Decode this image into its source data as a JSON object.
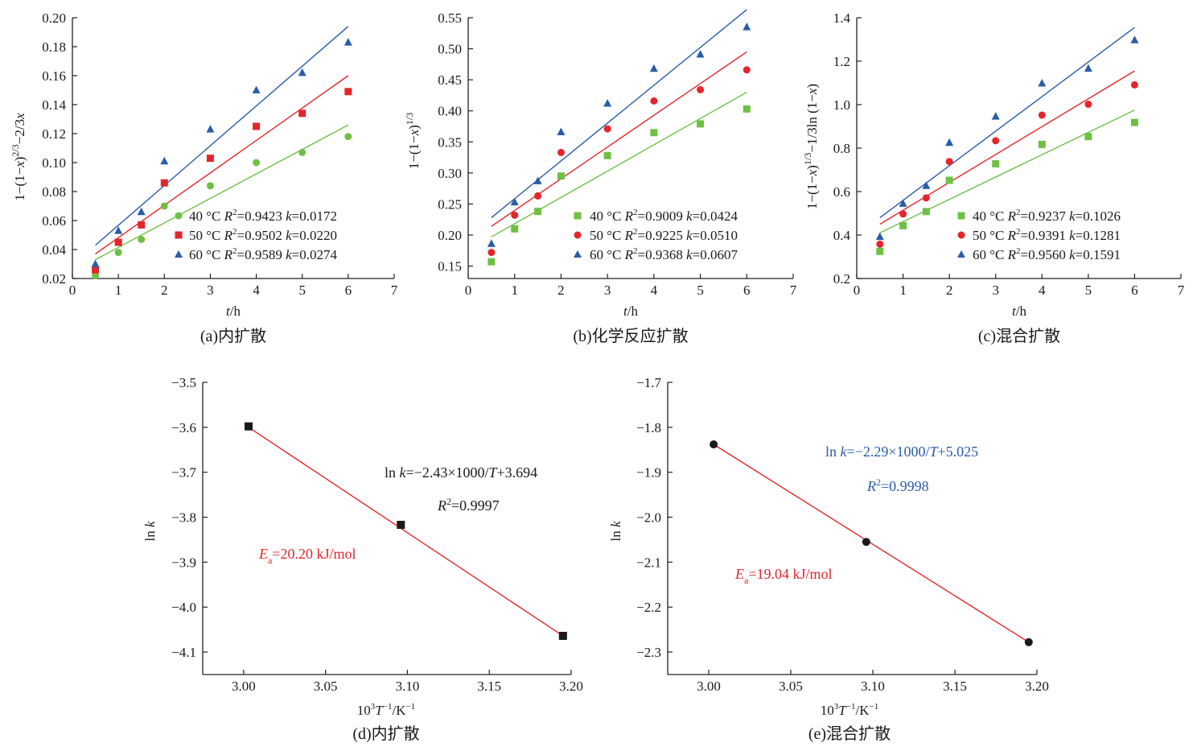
{
  "chart_data": [
    {
      "id": "a",
      "type": "scatter",
      "caption": "(a)内扩散",
      "xlabel": "t/h",
      "ylabel": "1−(1−x)^{2/3}−2/3x",
      "xlim": [
        0,
        7
      ],
      "ylim": [
        0.02,
        0.2
      ],
      "xticks": [
        "0",
        "1",
        "2",
        "3",
        "4",
        "5",
        "6",
        "7"
      ],
      "yticks": [
        "0.02",
        "0.04",
        "0.06",
        "0.08",
        "0.10",
        "0.12",
        "0.14",
        "0.16",
        "0.18",
        "0.20"
      ],
      "series": [
        {
          "name": "40 °C R2=0.9423 k=0.0172",
          "temp": "40 °C",
          "r2": "0.9423",
          "k": "0.0172",
          "marker": "circle",
          "color": "#6ec045",
          "x": [
            0.5,
            1,
            1.5,
            2,
            3,
            4,
            5,
            6
          ],
          "y": [
            0.022,
            0.038,
            0.047,
            0.07,
            0.084,
            0.1,
            0.107,
            0.118
          ],
          "fit": [
            [
              0.5,
              0.033
            ],
            [
              6,
              0.126
            ]
          ]
        },
        {
          "name": "50 °C R2=0.9502 k=0.0220",
          "temp": "50 °C",
          "r2": "0.9502",
          "k": "0.0220",
          "marker": "square",
          "color": "#e3262b",
          "x": [
            0.5,
            1,
            1.5,
            2,
            3,
            4,
            5,
            6
          ],
          "y": [
            0.026,
            0.045,
            0.057,
            0.086,
            0.103,
            0.125,
            0.134,
            0.149
          ],
          "fit": [
            [
              0.5,
              0.037
            ],
            [
              6,
              0.16
            ]
          ]
        },
        {
          "name": "60 °C R2=0.9589 k=0.0274",
          "temp": "60 °C",
          "r2": "0.9589",
          "k": "0.0274",
          "marker": "triangle",
          "color": "#2a5ca8",
          "x": [
            0.5,
            1,
            1.5,
            2,
            3,
            4,
            5,
            6
          ],
          "y": [
            0.03,
            0.053,
            0.066,
            0.101,
            0.123,
            0.15,
            0.162,
            0.183
          ],
          "fit": [
            [
              0.5,
              0.043
            ],
            [
              6,
              0.194
            ]
          ]
        }
      ]
    },
    {
      "id": "b",
      "type": "scatter",
      "caption": "(b)化学反应扩散",
      "xlabel": "t/h",
      "ylabel": "1−(1−x)^{1/3}",
      "xlim": [
        0,
        7
      ],
      "ylim": [
        0.13,
        0.55
      ],
      "xticks": [
        "0",
        "1",
        "2",
        "3",
        "4",
        "5",
        "6",
        "7"
      ],
      "yticks": [
        "0.15",
        "0.20",
        "0.25",
        "0.30",
        "0.35",
        "0.40",
        "0.45",
        "0.50",
        "0.55"
      ],
      "series": [
        {
          "name": "40 °C R2=0.9009 k=0.0424",
          "temp": "40 °C",
          "r2": "0.9009",
          "k": "0.0424",
          "marker": "square",
          "color": "#6ec045",
          "x": [
            0.5,
            1,
            1.5,
            2,
            3,
            4,
            5,
            6
          ],
          "y": [
            0.157,
            0.21,
            0.238,
            0.295,
            0.328,
            0.365,
            0.379,
            0.403
          ],
          "fit": [
            [
              0.5,
              0.197
            ],
            [
              6,
              0.43
            ]
          ]
        },
        {
          "name": "50 °C R2=0.9225 k=0.0510",
          "temp": "50 °C",
          "r2": "0.9225",
          "k": "0.0510",
          "marker": "circle",
          "color": "#e3262b",
          "x": [
            0.5,
            1,
            1.5,
            2,
            3,
            4,
            5,
            6
          ],
          "y": [
            0.172,
            0.232,
            0.263,
            0.333,
            0.371,
            0.416,
            0.434,
            0.466
          ],
          "fit": [
            [
              0.5,
              0.214
            ],
            [
              6,
              0.495
            ]
          ]
        },
        {
          "name": "60 °C R2=0.9368 k=0.0607",
          "temp": "60 °C",
          "r2": "0.9368",
          "k": "0.0607",
          "marker": "triangle",
          "color": "#2a5ca8",
          "x": [
            0.5,
            1,
            1.5,
            2,
            3,
            4,
            5,
            6
          ],
          "y": [
            0.186,
            0.253,
            0.287,
            0.366,
            0.412,
            0.468,
            0.491,
            0.535
          ],
          "fit": [
            [
              0.5,
              0.228
            ],
            [
              6,
              0.563
            ]
          ]
        }
      ]
    },
    {
      "id": "c",
      "type": "scatter",
      "caption": "(c)混合扩散",
      "xlabel": "t/h",
      "ylabel": "1−(1−x)^{1/3}−1/3ln(1−x)",
      "xlim": [
        0,
        7
      ],
      "ylim": [
        0.2,
        1.4
      ],
      "xticks": [
        "0",
        "1",
        "2",
        "3",
        "4",
        "5",
        "6",
        "7"
      ],
      "yticks": [
        "0.2",
        "0.4",
        "0.6",
        "0.8",
        "1.0",
        "1.2",
        "1.4"
      ],
      "series": [
        {
          "name": "40 °C R2=0.9237 k=0.1026",
          "temp": "40 °C",
          "r2": "0.9237",
          "k": "0.1026",
          "marker": "square",
          "color": "#6ec045",
          "x": [
            0.5,
            1,
            1.5,
            2,
            3,
            4,
            5,
            6
          ],
          "y": [
            0.325,
            0.443,
            0.508,
            0.652,
            0.728,
            0.817,
            0.853,
            0.918
          ],
          "fit": [
            [
              0.5,
              0.41
            ],
            [
              6,
              0.975
            ]
          ]
        },
        {
          "name": "50 °C R2=0.9391 k=0.1281",
          "temp": "50 °C",
          "r2": "0.9391",
          "k": "0.1281",
          "marker": "circle",
          "color": "#e3262b",
          "x": [
            0.5,
            1,
            1.5,
            2,
            3,
            4,
            5,
            6
          ],
          "y": [
            0.358,
            0.497,
            0.571,
            0.738,
            0.834,
            0.952,
            1.002,
            1.091
          ],
          "fit": [
            [
              0.5,
              0.45
            ],
            [
              6,
              1.155
            ]
          ]
        },
        {
          "name": "60 °C R2=0.9560 k=0.1591",
          "temp": "60 °C",
          "r2": "0.9560",
          "k": "0.1591",
          "marker": "triangle",
          "color": "#2a5ca8",
          "x": [
            0.5,
            1,
            1.5,
            2,
            3,
            4,
            5,
            6
          ],
          "y": [
            0.392,
            0.545,
            0.627,
            0.825,
            0.946,
            1.098,
            1.166,
            1.297
          ],
          "fit": [
            [
              0.5,
              0.48
            ],
            [
              6,
              1.355
            ]
          ]
        }
      ]
    },
    {
      "id": "d",
      "type": "scatter",
      "caption": "(d)内扩散",
      "xlabel": "10^{3}T^{−1}/K^{−1}",
      "ylabel": "ln k",
      "xlim": [
        2.975,
        3.2
      ],
      "ylim": [
        -4.15,
        -3.5
      ],
      "xticks": [
        "3.00",
        "3.05",
        "3.10",
        "3.15",
        "3.20"
      ],
      "yticks": [
        "−3.5",
        "−3.6",
        "−3.7",
        "−3.8",
        "−3.9",
        "−4.0",
        "−4.1"
      ],
      "series": [
        {
          "name": "ln k",
          "marker": "square",
          "color": "#1a1a1a",
          "x": [
            3.003,
            3.096,
            3.195
          ],
          "y": [
            -3.598,
            -3.817,
            -4.064
          ],
          "fit": [
            [
              3.003,
              -3.6
            ],
            [
              3.195,
              -4.064
            ]
          ]
        }
      ],
      "equation": "ln k=−2.43×1000/T+3.694",
      "r2": "R2=0.9997",
      "ea": "Ea=20.20 kJ/mol",
      "equation_color": "#1a1a1a",
      "ea_color": "#e3262b",
      "fit_color": "#e3262b"
    },
    {
      "id": "e",
      "type": "scatter",
      "caption": "(e)混合扩散",
      "xlabel": "10^{3}T^{−1}/K^{−1}",
      "ylabel": "ln k",
      "xlim": [
        2.975,
        3.2
      ],
      "ylim": [
        -2.35,
        -1.7
      ],
      "xticks": [
        "3.00",
        "3.05",
        "3.10",
        "3.15",
        "3.20"
      ],
      "yticks": [
        "−1.7",
        "−1.8",
        "−1.9",
        "−2.0",
        "−2.1",
        "−2.2",
        "−2.3"
      ],
      "series": [
        {
          "name": "ln k",
          "marker": "circle",
          "color": "#1a1a1a",
          "x": [
            3.003,
            3.096,
            3.195
          ],
          "y": [
            -1.838,
            -2.055,
            -2.278
          ],
          "fit": [
            [
              3.003,
              -1.838
            ],
            [
              3.195,
              -2.278
            ]
          ]
        }
      ],
      "equation": "ln k=−2.29×1000/T+5.025",
      "r2": "R2=0.9998",
      "ea": "Ea=19.04 kJ/mol",
      "equation_color": "#2a5ca8",
      "ea_color": "#e3262b",
      "fit_color": "#e3262b"
    }
  ]
}
